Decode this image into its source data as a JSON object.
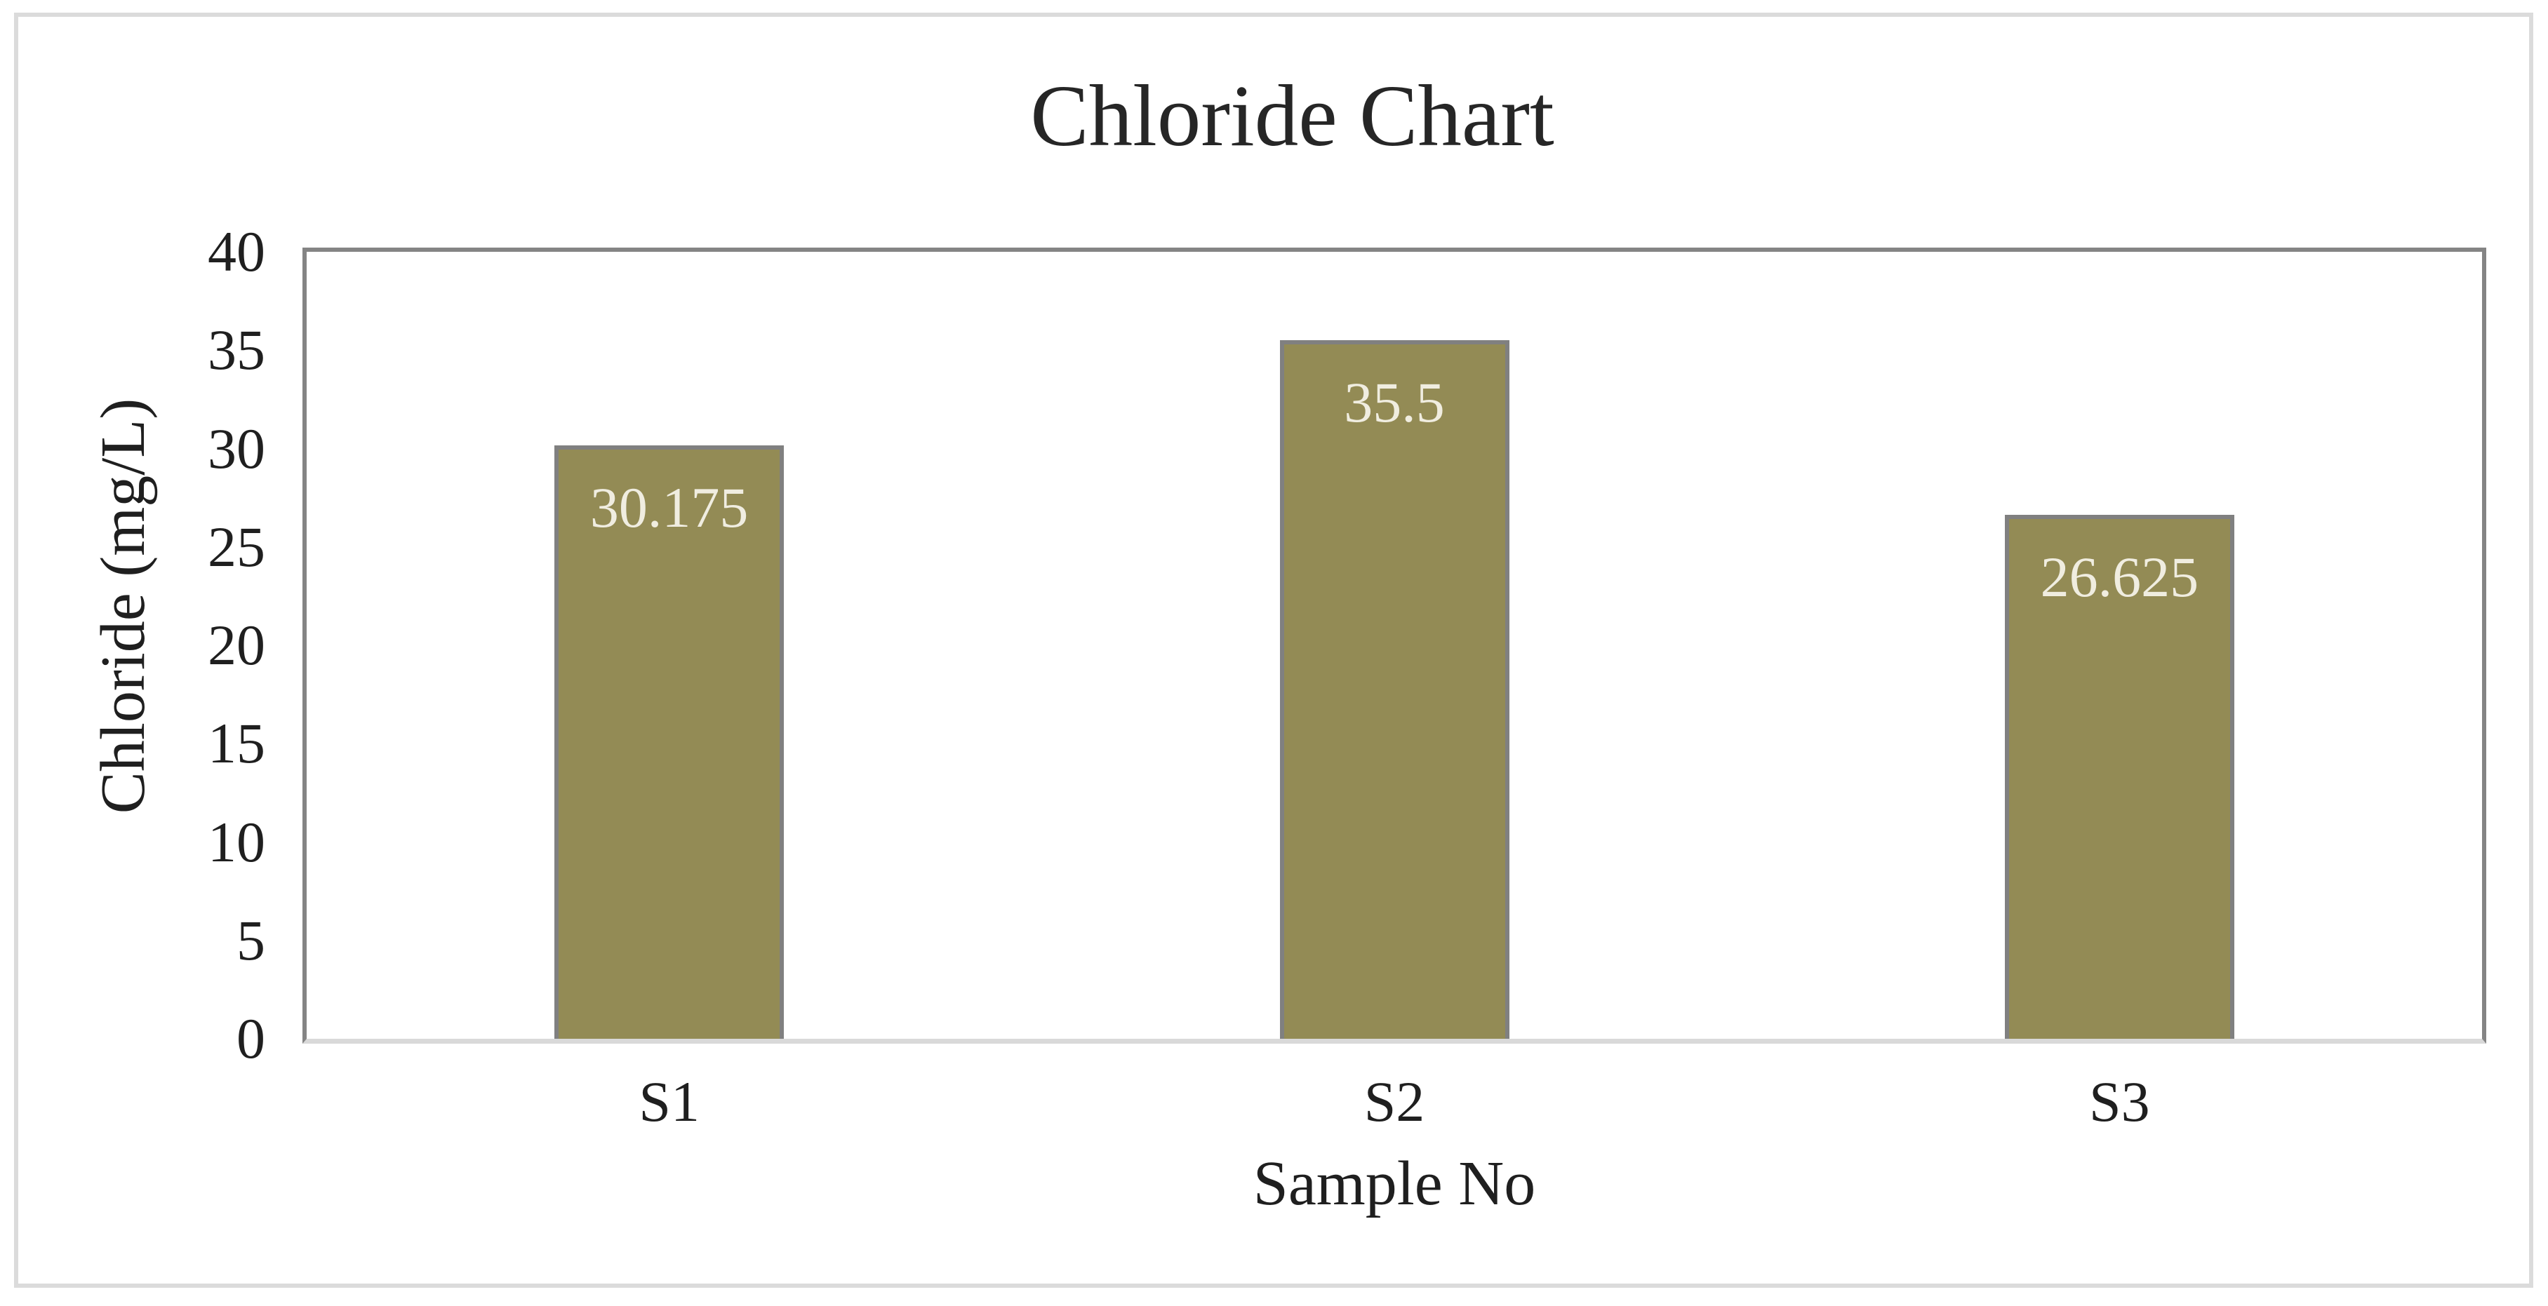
{
  "chart_data": {
    "type": "bar",
    "title": "Chloride Chart",
    "xlabel": "Sample No",
    "ylabel": "Chloride (mg/L)",
    "categories": [
      "S1",
      "S2",
      "S3"
    ],
    "values": [
      30.175,
      35.5,
      26.625
    ],
    "data_labels": [
      "30.175",
      "35.5",
      "26.625"
    ],
    "ylim": [
      0,
      40
    ],
    "ytick_step": 5,
    "grid": false,
    "legend_position": "none",
    "data_label_position": "inside-end"
  },
  "colors": {
    "bar_fill": "#938B55",
    "bar_border": "#808080",
    "plot_border": "#848484",
    "baseline": "#D9D9D9",
    "outer_frame": "#DBDBDB",
    "data_label_text": "#F0EDE0",
    "text": "#1F1F1F",
    "title_text": "#262626",
    "background": "#FFFFFF"
  }
}
